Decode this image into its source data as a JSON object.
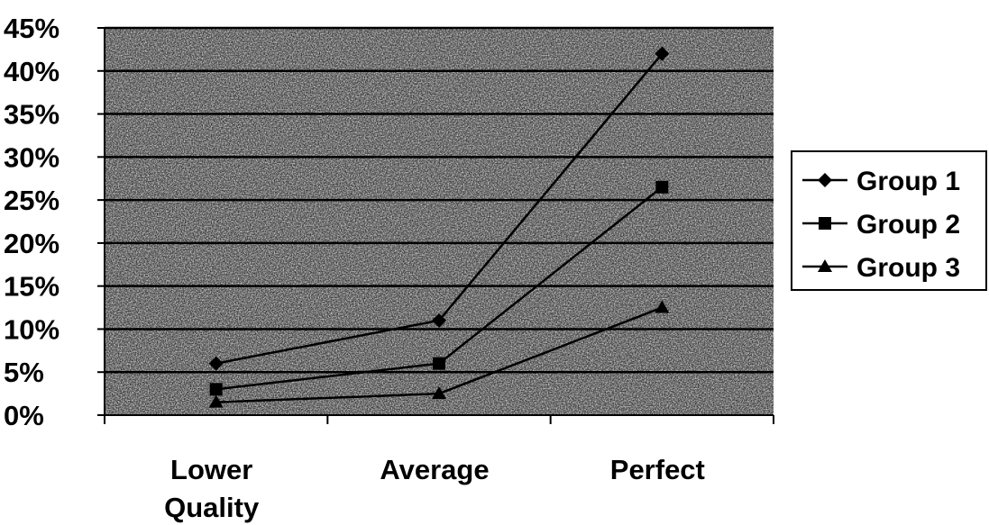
{
  "chart_data": {
    "type": "line",
    "categories": [
      "Lower Quality",
      "Average",
      "Perfect"
    ],
    "category_lines": [
      [
        "Lower",
        "Quality"
      ],
      [
        "Average"
      ],
      [
        "Perfect"
      ]
    ],
    "series": [
      {
        "name": "Group 1",
        "marker": "diamond",
        "values": [
          6,
          11,
          42
        ]
      },
      {
        "name": "Group 2",
        "marker": "square",
        "values": [
          3,
          6,
          26.5
        ]
      },
      {
        "name": "Group 3",
        "marker": "triangle",
        "values": [
          1.5,
          2.5,
          12.5
        ]
      }
    ],
    "y_ticks": [
      "0%",
      "5%",
      "10%",
      "15%",
      "20%",
      "25%",
      "30%",
      "35%",
      "40%",
      "45%"
    ],
    "ylim": [
      0,
      45
    ],
    "y_step": 5,
    "grid": true,
    "legend_position": "right",
    "colors": {
      "plot_bg": "#7a7a7a",
      "line": "#000000",
      "background": "#ffffff"
    }
  }
}
